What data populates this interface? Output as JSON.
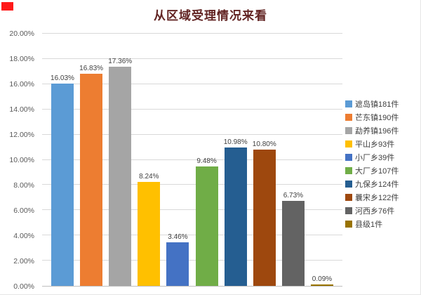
{
  "decorations": {
    "red_corner_marker_color": "#ff1a1a"
  },
  "chart_data": {
    "type": "bar",
    "title": "从区域受理情况来看",
    "categories": [
      "遮岛镇181件",
      "芒东镇190件",
      "勐养镇196件",
      "平山乡93件",
      "小厂乡39件",
      "大厂乡107件",
      "九保乡124件",
      "曩宋乡122件",
      "河西乡76件",
      "县级1件"
    ],
    "values": [
      16.03,
      16.83,
      17.36,
      8.24,
      3.46,
      9.48,
      10.98,
      10.8,
      6.73,
      0.09
    ],
    "value_labels": [
      "16.03%",
      "16.83%",
      "17.36%",
      "8.24%",
      "3.46%",
      "9.48%",
      "10.98%",
      "10.80%",
      "6.73%",
      "0.09%"
    ],
    "colors": [
      "#5B9BD5",
      "#ED7D31",
      "#A5A5A5",
      "#FFC000",
      "#4472C4",
      "#70AD47",
      "#255E91",
      "#9E480E",
      "#636363",
      "#997300"
    ],
    "xlabel": "",
    "ylabel": "",
    "ylim": [
      0,
      20
    ],
    "yticks": [
      "0.00%",
      "2.00%",
      "4.00%",
      "6.00%",
      "8.00%",
      "10.00%",
      "12.00%",
      "14.00%",
      "16.00%",
      "18.00%",
      "20.00%"
    ],
    "grid": true,
    "legend_position": "right"
  }
}
